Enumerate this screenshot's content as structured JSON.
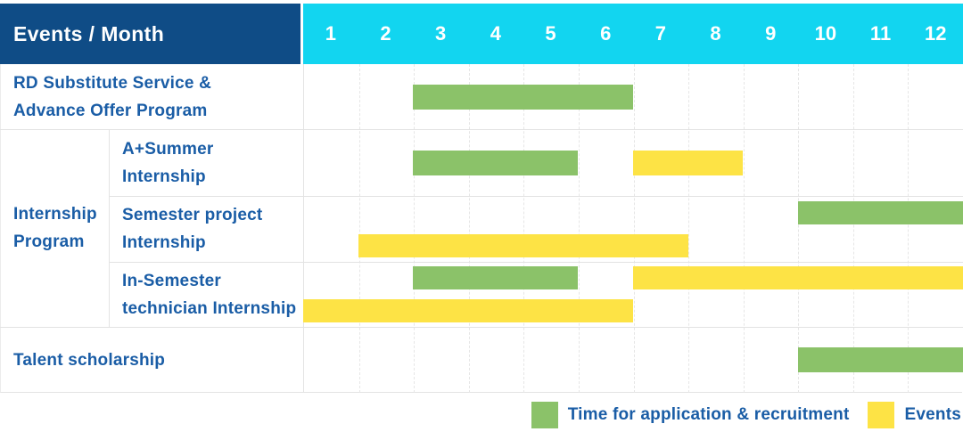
{
  "table": {
    "header": {
      "label": "Events / Month",
      "months": [
        "1",
        "2",
        "3",
        "4",
        "5",
        "6",
        "7",
        "8",
        "9",
        "10",
        "11",
        "12"
      ]
    },
    "row_labels": {
      "row1": "RD Substitute Service &\nAdvance Offer Program",
      "group": "Internship\nProgram",
      "row2": "A+Summer\nInternship",
      "row3": "Semester project\nInternship",
      "row4": "In-Semester\ntechnician Internship",
      "row5": "Talent scholarship"
    }
  },
  "chart_data": {
    "type": "gantt",
    "title": "Events / Month",
    "x_axis": {
      "label": "Month",
      "ticks": [
        1,
        2,
        3,
        4,
        5,
        6,
        7,
        8,
        9,
        10,
        11,
        12
      ],
      "range": [
        1,
        12
      ]
    },
    "grid": "dashed vertical month lines, solid row separators",
    "palette": {
      "application": "#8BC269",
      "events": "#FDE345"
    },
    "colors": {
      "header_bg": "#0F4C86",
      "months_bg": "#12D5F0",
      "label_text": "#1A5DA6",
      "grid": "#E3E3E3"
    },
    "rows": [
      {
        "group": null,
        "label": "RD Substitute Service & Advance Offer Program",
        "bars": [
          {
            "type": "application",
            "start": 3,
            "end": 6
          }
        ]
      },
      {
        "group": "Internship Program",
        "label": "A+Summer Internship",
        "bars": [
          {
            "type": "application",
            "start": 3,
            "end": 5
          },
          {
            "type": "events",
            "start": 7,
            "end": 8
          }
        ]
      },
      {
        "group": "Internship Program",
        "label": "Semester project Internship",
        "bars": [
          {
            "type": "application",
            "start": 10,
            "end": 12,
            "lane": "top"
          },
          {
            "type": "events",
            "start": 2,
            "end": 7,
            "lane": "bottom"
          }
        ]
      },
      {
        "group": "Internship Program",
        "label": "In-Semester technician Internship",
        "bars": [
          {
            "type": "application",
            "start": 3,
            "end": 5,
            "lane": "top"
          },
          {
            "type": "events",
            "start": 7,
            "end": 12,
            "lane": "top"
          },
          {
            "type": "events",
            "start": 1,
            "end": 6,
            "lane": "bottom"
          }
        ]
      },
      {
        "group": null,
        "label": "Talent scholarship",
        "bars": [
          {
            "type": "application",
            "start": 10,
            "end": 12
          }
        ]
      }
    ],
    "legend": [
      {
        "type": "application",
        "label": "Time for application & recruitment",
        "color": "#8BC269"
      },
      {
        "type": "events",
        "label": "Events",
        "color": "#FDE345"
      }
    ],
    "legend_position": "bottom-right"
  }
}
